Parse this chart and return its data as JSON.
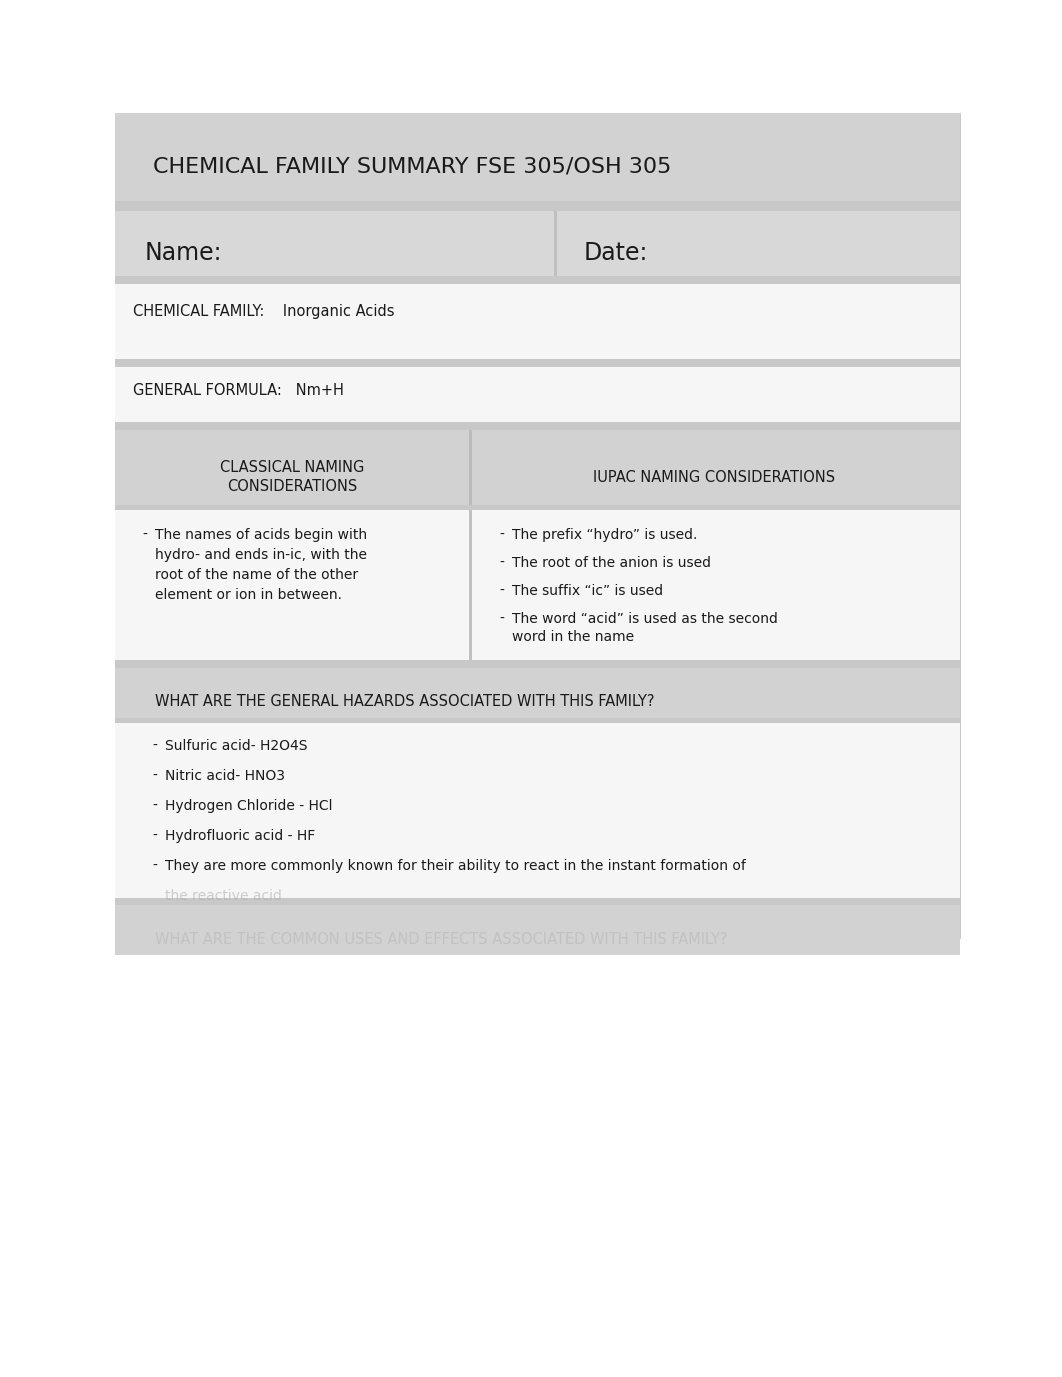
{
  "page_bg": "#ffffff",
  "doc_bg": "#d8d8d8",
  "title": "CHEMICAL FAMILY SUMMARY FSE 305/OSH 305",
  "title_bg": "#d0d0d0",
  "title_fontsize": 16,
  "name_label": "Name:",
  "date_label": "Date:",
  "name_date_bg": "#d8d8d8",
  "name_date_fontsize": 17,
  "chemical_family_label": "CHEMICAL FAMILY:    Inorganic Acids",
  "chemical_family_fontsize": 10.5,
  "general_formula_label": "GENERAL FORMULA:   Nm+H",
  "general_formula_fontsize": 10.5,
  "classical_header": "CLASSICAL NAMING\nCONSIDERATIONS",
  "iupac_header": "IUPAC NAMING CONSIDERATIONS",
  "naming_header_bg": "#d0d0d0",
  "naming_header_fontsize": 10.5,
  "classical_bullet": "The names of acids begin with\nhydro- and ends in-ic, with the\nroot of the name of the other\nelement or ion in between.",
  "iupac_bullets": [
    "The prefix “hydro” is used.",
    "The root of the anion is used",
    "The suffix “ic” is used",
    "The word “acid” is used as the second\nword in the name"
  ],
  "hazards_header": "WHAT ARE THE GENERAL HAZARDS ASSOCIATED WITH THIS FAMILY?",
  "hazards_header_bg": "#d0d0d0",
  "hazards_header_fontsize": 10.5,
  "hazards_bullets": [
    "Sulfuric acid- H2O4S",
    "Nitric acid- HNO3",
    "Hydrogen Chloride - HCl",
    "Hydrofluoric acid - HF",
    "They are more commonly known for their ability to react in the instant formation of"
  ],
  "hazards_blurred_continuation": "the reactive acid",
  "last_header_blurred": "WHAT ARE THE COMMON USES AND EFFECTS ASSOCIATED WITH THIS FAMILY?",
  "last_header_bg": "#d0d0d0",
  "bullet_fontsize": 10,
  "white_bg": "#f8f8f8",
  "separator_color": "#c0c0c0"
}
